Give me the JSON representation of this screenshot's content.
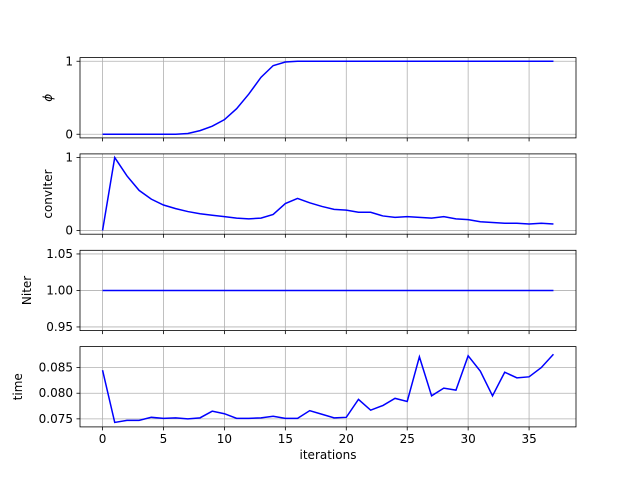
{
  "chart_data": [
    {
      "type": "line",
      "ylabel": "ϕ",
      "ylabel_style": "italic",
      "x": [
        0,
        1,
        2,
        3,
        4,
        5,
        6,
        7,
        8,
        9,
        10,
        11,
        12,
        13,
        14,
        15,
        16,
        17,
        18,
        19,
        20,
        21,
        22,
        23,
        24,
        25,
        26,
        27,
        28,
        29,
        30,
        31,
        32,
        33,
        34,
        35,
        36,
        37
      ],
      "series": [
        {
          "name": "phi",
          "color": "#0000ff",
          "values": [
            0,
            0,
            0,
            0,
            0,
            0,
            0,
            0.01,
            0.05,
            0.11,
            0.2,
            0.35,
            0.55,
            0.78,
            0.94,
            0.99,
            1,
            1,
            1,
            1,
            1,
            1,
            1,
            1,
            1,
            1,
            1,
            1,
            1,
            1,
            1,
            1,
            1,
            1,
            1,
            1,
            1,
            1
          ]
        }
      ],
      "xlim": [
        -1.85,
        38.85
      ],
      "xticks": [
        0,
        5,
        10,
        15,
        20,
        25,
        30,
        35
      ],
      "ylim": [
        -0.05,
        1.05
      ],
      "yticks": [
        0,
        1
      ],
      "grid": true
    },
    {
      "type": "line",
      "ylabel": "convIter",
      "x": [
        0,
        1,
        2,
        3,
        4,
        5,
        6,
        7,
        8,
        9,
        10,
        11,
        12,
        13,
        14,
        15,
        16,
        17,
        18,
        19,
        20,
        21,
        22,
        23,
        24,
        25,
        26,
        27,
        28,
        29,
        30,
        31,
        32,
        33,
        34,
        35,
        36,
        37
      ],
      "series": [
        {
          "name": "convIter",
          "color": "#0000ff",
          "values": [
            0,
            1,
            0.75,
            0.55,
            0.43,
            0.35,
            0.3,
            0.26,
            0.23,
            0.21,
            0.19,
            0.17,
            0.16,
            0.17,
            0.22,
            0.37,
            0.44,
            0.38,
            0.33,
            0.29,
            0.28,
            0.25,
            0.25,
            0.2,
            0.18,
            0.19,
            0.18,
            0.17,
            0.19,
            0.16,
            0.15,
            0.12,
            0.11,
            0.1,
            0.1,
            0.09,
            0.1,
            0.09
          ]
        }
      ],
      "xlim": [
        -1.85,
        38.85
      ],
      "xticks": [
        0,
        5,
        10,
        15,
        20,
        25,
        30,
        35
      ],
      "ylim": [
        -0.05,
        1.05
      ],
      "yticks": [
        0,
        1
      ],
      "grid": true
    },
    {
      "type": "line",
      "ylabel": "Niter",
      "x": [
        0,
        1,
        2,
        3,
        4,
        5,
        6,
        7,
        8,
        9,
        10,
        11,
        12,
        13,
        14,
        15,
        16,
        17,
        18,
        19,
        20,
        21,
        22,
        23,
        24,
        25,
        26,
        27,
        28,
        29,
        30,
        31,
        32,
        33,
        34,
        35,
        36,
        37
      ],
      "series": [
        {
          "name": "Niter",
          "color": "#0000ff",
          "values": [
            1,
            1,
            1,
            1,
            1,
            1,
            1,
            1,
            1,
            1,
            1,
            1,
            1,
            1,
            1,
            1,
            1,
            1,
            1,
            1,
            1,
            1,
            1,
            1,
            1,
            1,
            1,
            1,
            1,
            1,
            1,
            1,
            1,
            1,
            1,
            1,
            1,
            1
          ]
        }
      ],
      "xlim": [
        -1.85,
        38.85
      ],
      "xticks": [
        0,
        5,
        10,
        15,
        20,
        25,
        30,
        35
      ],
      "ylim": [
        0.945,
        1.055
      ],
      "yticks": [
        {
          "value": 0.95,
          "label": "0.95"
        },
        {
          "value": 1,
          "label": "1.00"
        },
        {
          "value": 1.05,
          "label": "1.05"
        }
      ],
      "grid": true
    },
    {
      "type": "line",
      "ylabel": "time",
      "xlabel": "iterations",
      "x": [
        0,
        1,
        2,
        3,
        4,
        5,
        6,
        7,
        8,
        9,
        10,
        11,
        12,
        13,
        14,
        15,
        16,
        17,
        18,
        19,
        20,
        21,
        22,
        23,
        24,
        25,
        26,
        27,
        28,
        29,
        30,
        31,
        32,
        33,
        34,
        35,
        36,
        37
      ],
      "series": [
        {
          "name": "time",
          "color": "#0000ff",
          "values": [
            0.0845,
            0.0743,
            0.0747,
            0.0747,
            0.0753,
            0.0751,
            0.0752,
            0.075,
            0.0752,
            0.0765,
            0.076,
            0.0751,
            0.0751,
            0.0752,
            0.0755,
            0.0751,
            0.0751,
            0.0766,
            0.0759,
            0.0752,
            0.0753,
            0.0788,
            0.0767,
            0.0776,
            0.079,
            0.0784,
            0.0871,
            0.0795,
            0.081,
            0.0806,
            0.0873,
            0.0843,
            0.0795,
            0.0841,
            0.083,
            0.0832,
            0.085,
            0.0876
          ]
        }
      ],
      "xlim": [
        -1.85,
        38.85
      ],
      "xticks": [
        0,
        5,
        10,
        15,
        20,
        25,
        30,
        35
      ],
      "xtick_labels": true,
      "ylim": [
        0.07343,
        0.0891
      ],
      "yticks": [
        0.075,
        {
          "value": 0.08,
          "label": "0.080"
        },
        0.085
      ],
      "grid": true
    }
  ]
}
